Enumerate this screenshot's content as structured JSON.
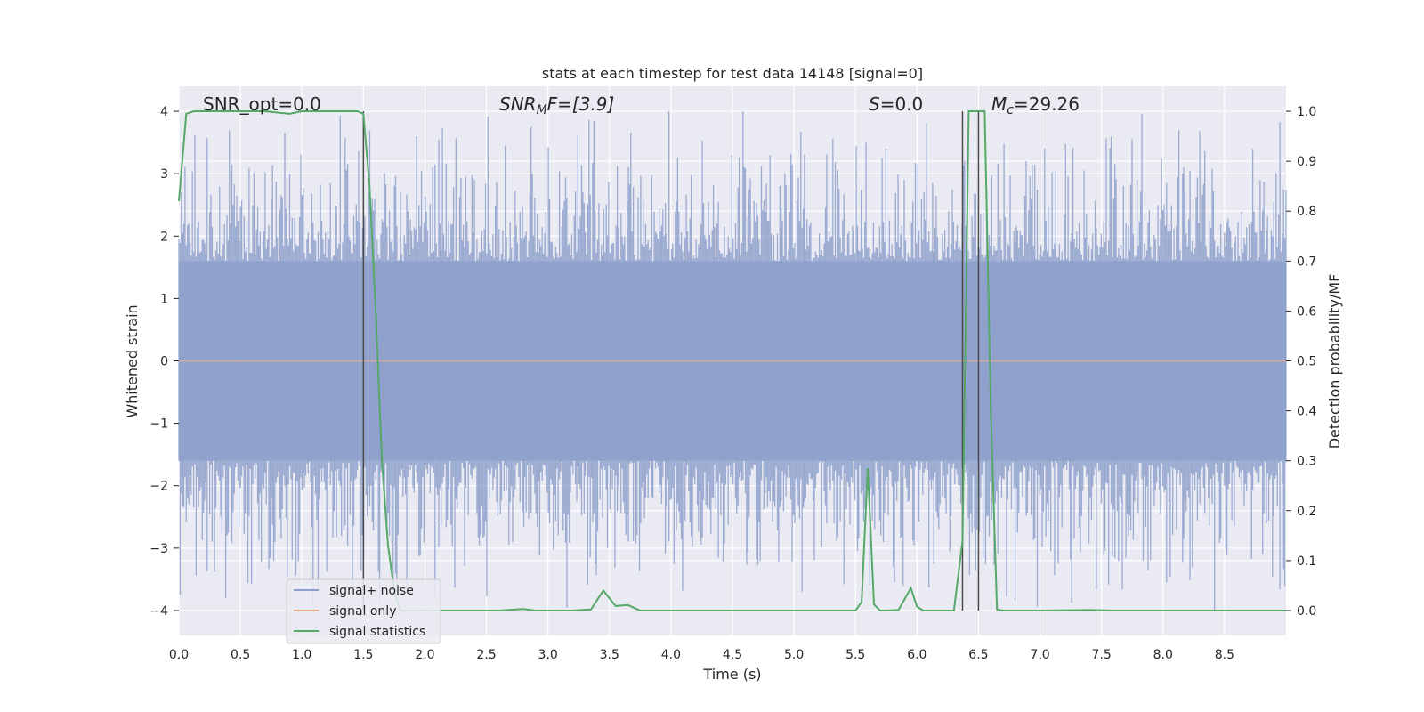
{
  "chart_data": {
    "type": "line",
    "title": "stats at each timestep for test data 14148 [signal=0]",
    "xlabel": "Time (s)",
    "ylabel": "Whitened strain",
    "y2label": "Detection probability/MF",
    "xlim": [
      0,
      9
    ],
    "ylim": [
      -4.4,
      4.4
    ],
    "y2lim": [
      -0.05,
      1.05
    ],
    "x_ticks": [
      "0.0",
      "0.5",
      "1.0",
      "1.5",
      "2.0",
      "2.5",
      "3.0",
      "3.5",
      "4.0",
      "4.5",
      "5.0",
      "5.5",
      "6.0",
      "6.5",
      "7.0",
      "7.5",
      "8.0",
      "8.5"
    ],
    "y_ticks": [
      "−4",
      "−3",
      "−2",
      "−1",
      "0",
      "1",
      "2",
      "3",
      "4"
    ],
    "y2_ticks": [
      "0.0",
      "0.1",
      "0.2",
      "0.3",
      "0.4",
      "0.5",
      "0.6",
      "0.7",
      "0.8",
      "0.9",
      "1.0"
    ],
    "grid": true,
    "legend": {
      "placement": "lower-left",
      "entries": [
        {
          "label": "signal+ noise",
          "color": "#8c9fcb"
        },
        {
          "label": "signal only",
          "color": "#e6a98c"
        },
        {
          "label": "signal statistics",
          "color": "#55a868"
        }
      ]
    },
    "annotations": {
      "snr_opt": "SNR_opt=0.0",
      "snr_mf_main": "SNR",
      "snr_mf_sub": "M",
      "snr_mf_rest": "F=[3.9]",
      "s_main": "S",
      "s_rest": "=0.0",
      "mc_main": "M",
      "mc_sub": "c",
      "mc_rest": "=29.26"
    },
    "noise_envelope": {
      "description_units": "strain",
      "core_band": [
        -1.6,
        1.6
      ],
      "peak_max": 4.0,
      "peak_min": -4.0
    },
    "signal_only": {
      "x": [
        0,
        9
      ],
      "y": [
        0,
        0
      ]
    },
    "vertical_markers_x": [
      1.5,
      6.37,
      6.5
    ],
    "series": [
      {
        "name": "signal statistics",
        "axis": "right",
        "color": "#55a868",
        "x": [
          0.0,
          0.06,
          0.12,
          0.3,
          0.5,
          0.7,
          0.9,
          1.0,
          1.1,
          1.3,
          1.45,
          1.5,
          1.55,
          1.6,
          1.65,
          1.7,
          1.75,
          1.8,
          2.0,
          2.4,
          2.6,
          2.8,
          2.9,
          3.2,
          3.35,
          3.45,
          3.55,
          3.65,
          3.75,
          4.0,
          5.0,
          5.5,
          5.55,
          5.6,
          5.65,
          5.7,
          5.75,
          5.85,
          5.95,
          6.0,
          6.05,
          6.1,
          6.3,
          6.37,
          6.42,
          6.48,
          6.55,
          6.6,
          6.65,
          6.7,
          7.0,
          7.4,
          7.6,
          8.0,
          8.5,
          9.0
        ],
        "y": [
          0.82,
          0.995,
          1.0,
          1.0,
          1.0,
          1.0,
          0.995,
          1.0,
          1.0,
          1.0,
          1.0,
          0.995,
          0.85,
          0.6,
          0.3,
          0.13,
          0.04,
          0.0,
          0.0,
          0.0,
          0.0,
          0.003,
          0.0,
          0.0,
          0.002,
          0.04,
          0.009,
          0.011,
          0.0,
          0.0,
          0.0,
          0.0,
          0.017,
          0.285,
          0.012,
          0.0,
          0.0,
          0.001,
          0.045,
          0.008,
          0.0,
          0.0,
          0.0,
          0.14,
          1.0,
          1.0,
          1.0,
          0.4,
          0.002,
          0.0,
          0.0,
          0.001,
          0.0,
          0.0,
          0.0,
          0.0
        ]
      }
    ]
  }
}
